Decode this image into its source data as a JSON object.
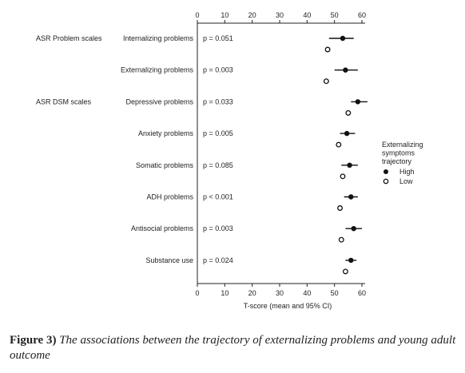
{
  "chart_data": {
    "type": "scatter",
    "xlabel": "T-score (mean and 95% CI)",
    "xlim": [
      0,
      60
    ],
    "xticks": [
      "0",
      "10",
      "20",
      "30",
      "40",
      "50",
      "60"
    ],
    "group_labels": [
      "ASR Problem scales",
      "ASR DSM scales"
    ],
    "legend": {
      "title_lines": [
        "Externalizing",
        "symptoms",
        "trajectory"
      ],
      "entries": [
        {
          "label": "High",
          "marker": "filled"
        },
        {
          "label": "Low",
          "marker": "open"
        }
      ]
    },
    "rows": [
      {
        "label": "Internalizing problems",
        "p": "p = 0.051",
        "group": "ASR Problem scales",
        "high": {
          "mean": 53,
          "lo": 48,
          "hi": 57
        },
        "low": {
          "mean": 47.5
        }
      },
      {
        "label": "Externalizing problems",
        "p": "p = 0.003",
        "high": {
          "mean": 54,
          "lo": 50,
          "hi": 58.5
        },
        "low": {
          "mean": 47
        }
      },
      {
        "label": "Depressive problems",
        "p": "p = 0.033",
        "group": "ASR DSM scales",
        "high": {
          "mean": 58.5,
          "lo": 56,
          "hi": 62
        },
        "low": {
          "mean": 55
        }
      },
      {
        "label": "Anxiety problems",
        "p": "p = 0.005",
        "high": {
          "mean": 54.5,
          "lo": 52,
          "hi": 57.5
        },
        "low": {
          "mean": 51.5
        }
      },
      {
        "label": "Somatic problems",
        "p": "p = 0.085",
        "high": {
          "mean": 55.5,
          "lo": 52.5,
          "hi": 58.5
        },
        "low": {
          "mean": 53
        }
      },
      {
        "label": "ADH problems",
        "p": "p < 0.001",
        "high": {
          "mean": 56,
          "lo": 53.5,
          "hi": 58.5
        },
        "low": {
          "mean": 52
        }
      },
      {
        "label": "Antisocial problems",
        "p": "p = 0.003",
        "high": {
          "mean": 57,
          "lo": 54,
          "hi": 60
        },
        "low": {
          "mean": 52.5
        }
      },
      {
        "label": "Substance use",
        "p": "p = 0.024",
        "high": {
          "mean": 56,
          "lo": 54,
          "hi": 58
        },
        "low": {
          "mean": 54
        }
      }
    ]
  },
  "caption": {
    "label": "Figure 3)",
    "text": "The associations between the trajectory of externalizing problems and young adult outcome"
  }
}
